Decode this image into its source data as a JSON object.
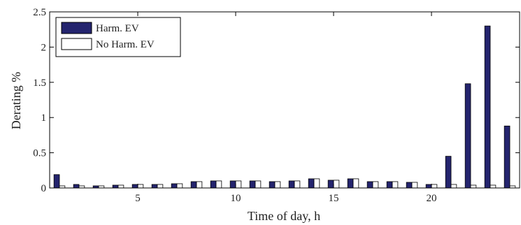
{
  "chart_data": {
    "type": "bar",
    "xlabel": "Time of day, h",
    "ylabel": "Derating %",
    "xlim": [
      0.5,
      24.5
    ],
    "ylim": [
      0,
      2.5
    ],
    "xticks": [
      5,
      10,
      15,
      20
    ],
    "yticks": [
      0,
      0.5,
      1,
      1.5,
      2,
      2.5
    ],
    "x": [
      1,
      2,
      3,
      4,
      5,
      6,
      7,
      8,
      9,
      10,
      11,
      12,
      13,
      14,
      15,
      16,
      17,
      18,
      19,
      20,
      21,
      22,
      23,
      24
    ],
    "series": [
      {
        "name": "Harm. EV",
        "color": "#24246e",
        "values": [
          0.19,
          0.05,
          0.03,
          0.04,
          0.05,
          0.05,
          0.06,
          0.09,
          0.1,
          0.1,
          0.1,
          0.09,
          0.1,
          0.13,
          0.11,
          0.13,
          0.09,
          0.09,
          0.08,
          0.05,
          0.45,
          1.48,
          2.3,
          0.88
        ]
      },
      {
        "name": "No Harm. EV",
        "color": "#ffffff",
        "values": [
          0.03,
          0.03,
          0.03,
          0.04,
          0.05,
          0.05,
          0.06,
          0.09,
          0.1,
          0.1,
          0.1,
          0.09,
          0.1,
          0.13,
          0.11,
          0.13,
          0.09,
          0.09,
          0.08,
          0.05,
          0.05,
          0.04,
          0.04,
          0.03
        ]
      }
    ],
    "legend": {
      "position": "top-left",
      "box": true
    },
    "grid": false
  }
}
